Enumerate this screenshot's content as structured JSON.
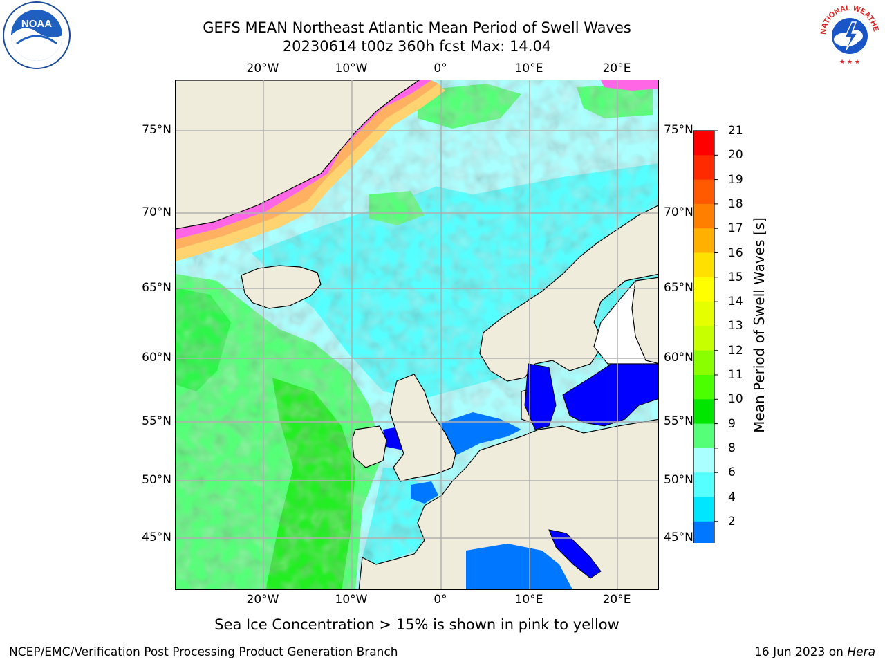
{
  "header": {
    "title_line1": "GEFS MEAN Northeast Atlantic Mean Period of Swell Waves",
    "title_line2": "20230614 t00z 360h fcst   Max: 14.04"
  },
  "map": {
    "lon_labels": [
      "20°W",
      "10°W",
      "0°",
      "10°E",
      "20°E"
    ],
    "lat_labels": [
      "75°N",
      "70°N",
      "65°N",
      "60°N",
      "55°N",
      "50°N",
      "45°N"
    ],
    "land_color": "#efecdc",
    "grid_color": "#b0b0b0"
  },
  "colorbar": {
    "label": "Mean Period of Swell Waves [s]",
    "ticks": [
      "21",
      "20",
      "19",
      "18",
      "17",
      "16",
      "15",
      "14",
      "13",
      "12",
      "11",
      "10",
      "9",
      "8",
      "6",
      "4",
      "2"
    ],
    "colors": [
      "#ff0000",
      "#ff2a00",
      "#ff5a00",
      "#ff8000",
      "#ffb000",
      "#ffe000",
      "#ffff00",
      "#e5ff00",
      "#c8ff00",
      "#8aff00",
      "#4cff00",
      "#00e600",
      "#55ff77",
      "#aaffff",
      "#55ffff",
      "#00e6ff",
      "#0077ff"
    ],
    "under_color": "#0000ff"
  },
  "footer": {
    "note": "Sea Ice Concentration > 15% is shown in pink to yellow",
    "left": "NCEP/EMC/Verification Post Processing Product Generation Branch",
    "right_date": "16 Jun 2023 on ",
    "right_host": "Hera"
  },
  "logos": {
    "noaa_text": "NOAA",
    "nws_text": "NATIONAL WEATHER SERVICE"
  }
}
